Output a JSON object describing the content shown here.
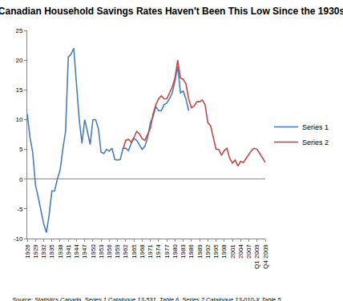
{
  "chart_data": {
    "type": "line",
    "title": "Canadian Household Savings Rates Haven't Been This Low Since the 1930s",
    "annotation": "Source: Statistics Canada, Series 1 Catalogue 13-531, Table 6, Series 2 Catalogue 13-010-X Table 5",
    "categories": [
      "1926",
      null,
      null,
      "1929",
      null,
      null,
      "1932",
      null,
      null,
      "1935",
      null,
      null,
      "1938",
      null,
      null,
      "1941",
      null,
      null,
      "1944",
      null,
      null,
      "1947",
      null,
      null,
      "1950",
      null,
      null,
      "1953",
      null,
      null,
      "1956",
      null,
      null,
      "1959",
      null,
      null,
      "1962",
      null,
      null,
      "1965",
      null,
      null,
      "1968",
      null,
      null,
      "1971",
      null,
      null,
      "1974",
      null,
      null,
      "1977",
      null,
      null,
      "1980",
      null,
      null,
      "1983",
      null,
      null,
      "1986",
      null,
      null,
      "1989",
      null,
      null,
      "1992",
      null,
      null,
      "1995",
      null,
      null,
      "1998",
      null,
      null,
      "2001",
      null,
      null,
      "2004",
      null,
      null,
      "2007",
      null,
      null,
      "Q1 2009",
      null,
      null,
      "Q4 2009"
    ],
    "series": [
      {
        "name": "Series 1",
        "color": "#4a7ebb",
        "values": [
          11,
          7,
          4.5,
          -1,
          -3,
          -5.5,
          -7.5,
          -9,
          -6,
          -2,
          -2,
          0,
          1.5,
          5,
          8,
          20.5,
          21,
          22,
          16,
          10,
          6,
          10,
          8,
          5.8,
          10,
          10,
          8.5,
          4.5,
          4.3,
          5,
          4.7,
          5.2,
          3.3,
          3.2,
          3.3,
          5.2,
          5.2,
          4.8,
          6,
          6.8,
          6.5,
          5.8,
          5,
          5.5,
          7,
          9.5,
          10.5,
          12.2,
          11.5,
          11.5,
          12.5,
          12.8,
          13.5,
          14.5,
          16.5,
          19,
          14.5,
          14.8,
          13.5,
          11.5,
          null,
          null,
          null,
          null,
          null,
          null,
          null,
          null,
          null,
          null,
          null,
          null,
          null,
          null,
          null,
          null,
          null,
          null,
          null,
          null,
          null,
          null,
          null,
          null,
          null,
          null,
          null,
          null
        ]
      },
      {
        "name": "Series 2",
        "color": "#be4b48",
        "values": [
          null,
          null,
          null,
          null,
          null,
          null,
          null,
          null,
          null,
          null,
          null,
          null,
          null,
          null,
          null,
          null,
          null,
          null,
          null,
          null,
          null,
          null,
          null,
          null,
          null,
          null,
          null,
          null,
          null,
          null,
          null,
          null,
          null,
          null,
          null,
          5,
          6.5,
          6.7,
          6.2,
          7,
          8,
          7.6,
          6.8,
          6.5,
          7.5,
          8.5,
          11,
          12.5,
          13.5,
          14,
          13.5,
          13.5,
          14.5,
          15.5,
          17,
          20,
          17,
          16.8,
          16,
          13.5,
          12,
          12.3,
          13,
          13,
          13.3,
          12.5,
          9.5,
          9,
          7,
          5,
          5,
          4,
          4.8,
          5.2,
          3.5,
          2.7,
          3.2,
          2.2,
          3,
          2.8,
          3.5,
          4.2,
          4.8,
          5.2,
          5,
          4.3,
          3.5,
          2.8
        ]
      }
    ],
    "ylim": [
      -10,
      25
    ],
    "yticks": [
      -10,
      -5,
      0,
      5,
      10,
      15,
      20,
      25
    ],
    "grid": false,
    "legend": "right"
  }
}
